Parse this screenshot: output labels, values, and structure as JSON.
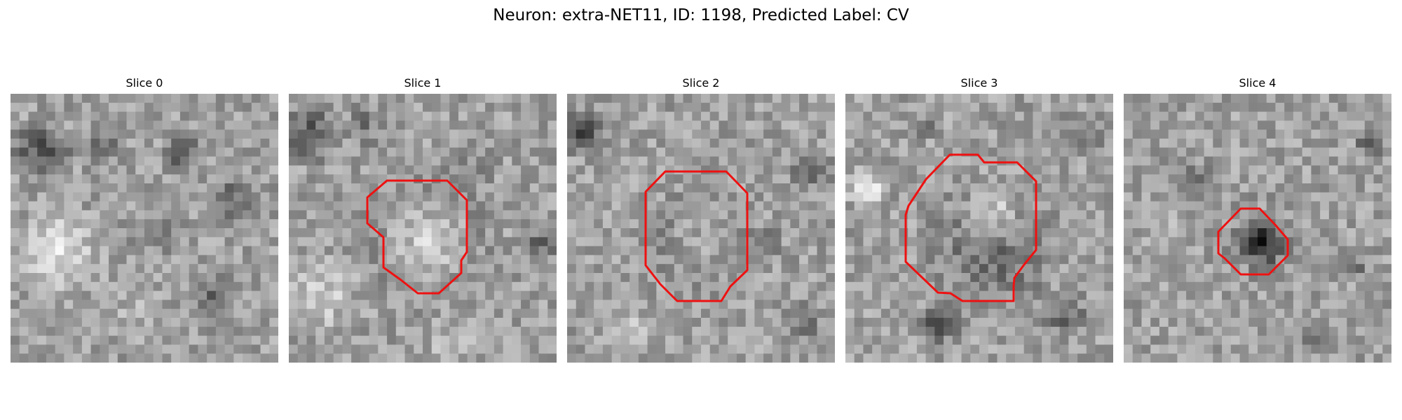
{
  "figure": {
    "title": "Neuron: extra-NET11, ID: 1198, Predicted Label: CV",
    "contour_color": "#ee1111",
    "colormap": "gray"
  },
  "panels": [
    {
      "label": "Slice 0",
      "has_contour": false,
      "seed": 11
    },
    {
      "label": "Slice 1",
      "has_contour": true,
      "seed": 23
    },
    {
      "label": "Slice 2",
      "has_contour": true,
      "seed": 37
    },
    {
      "label": "Slice 3",
      "has_contour": true,
      "seed": 41
    },
    {
      "label": "Slice 4",
      "has_contour": true,
      "seed": 53
    }
  ]
}
